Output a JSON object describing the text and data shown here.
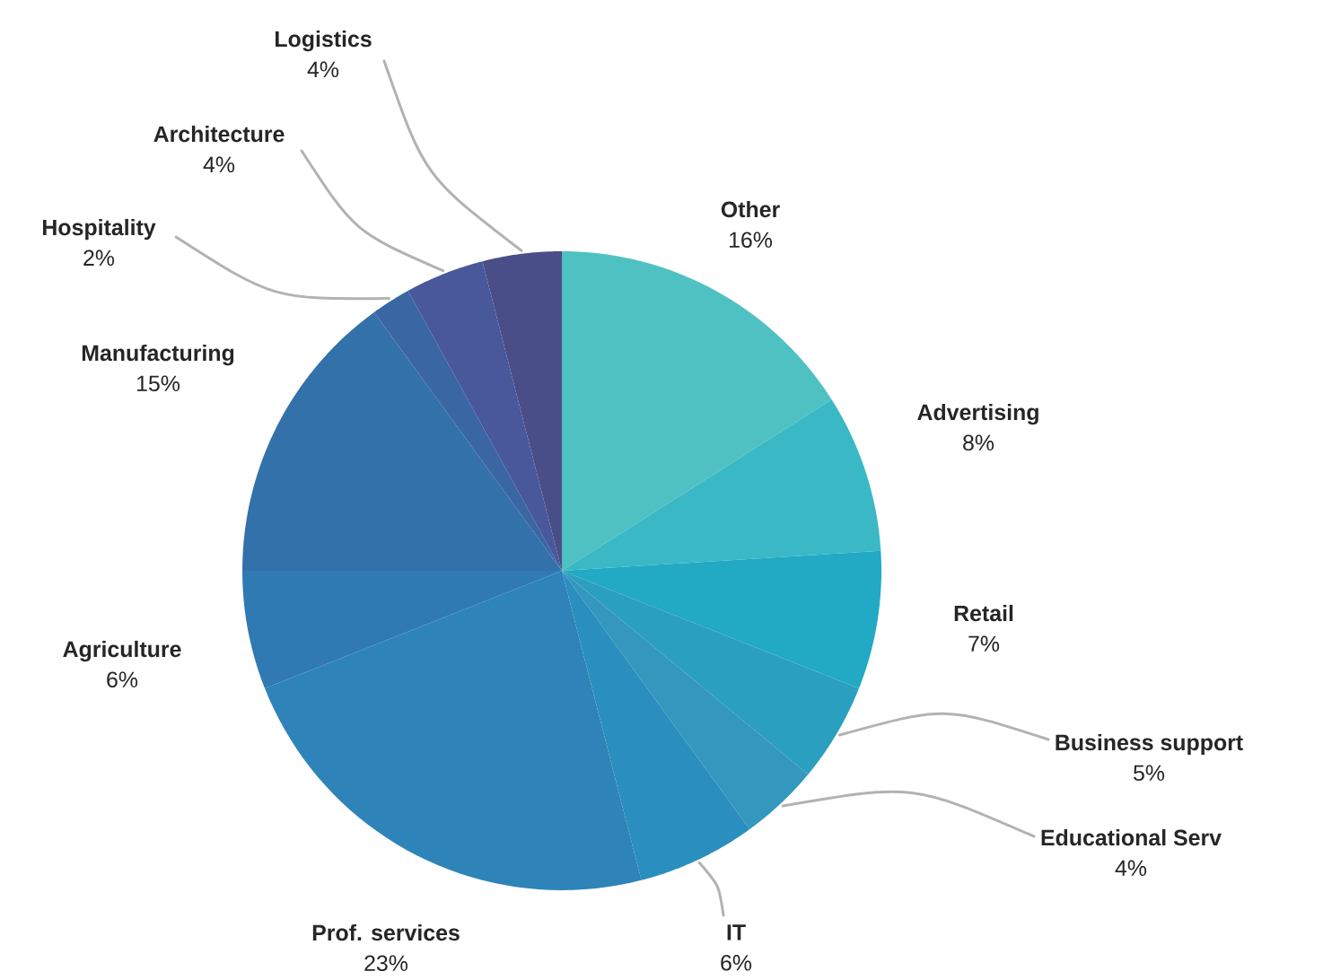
{
  "chart_data": {
    "type": "pie",
    "categories": [
      "Other",
      "Advertising",
      "Retail",
      "Business support",
      "Educational Serv",
      "IT",
      "Prof. services",
      "Agriculture",
      "Manufacturing",
      "Hospitality",
      "Architecture",
      "Logistics"
    ],
    "values": [
      16,
      8,
      7,
      5,
      4,
      6,
      23,
      6,
      15,
      2,
      4,
      4
    ],
    "value_labels": [
      "16%",
      "8%",
      "7%",
      "5%",
      "4%",
      "6%",
      "23%",
      "6%",
      "15%",
      "2%",
      "4%",
      "4%"
    ],
    "colors": [
      "#4fc1c2",
      "#3ab8c6",
      "#22a9c4",
      "#2a9fc0",
      "#3497bd",
      "#2a8fbf",
      "#2e84b8",
      "#2f7ab2",
      "#3371aa",
      "#3a66a3",
      "#48589a",
      "#4a4e88"
    ]
  }
}
